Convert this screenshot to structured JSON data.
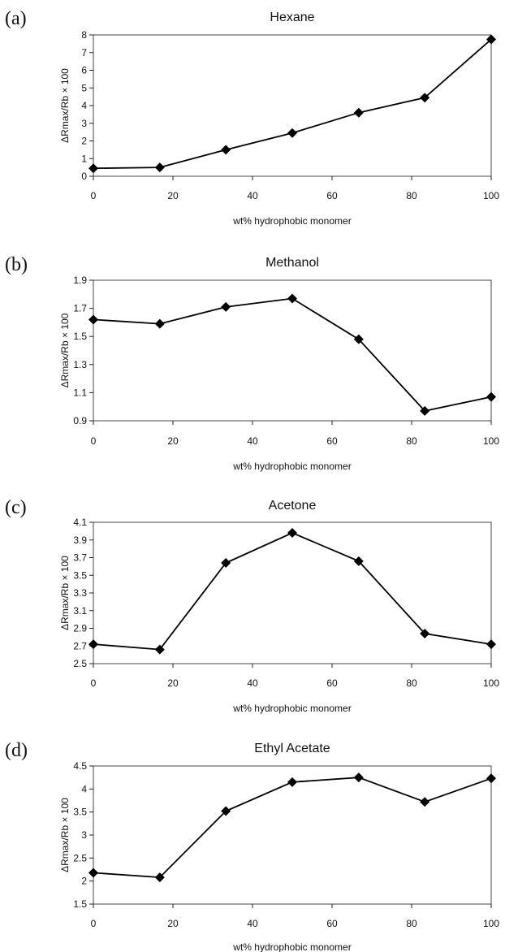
{
  "chart_data": [
    {
      "panel": "(a)",
      "type": "line",
      "title": "Hexane",
      "xlabel": "wt% hydrophobic monomer",
      "ylabel": "ΔRmax/Rb × 100",
      "x": [
        0,
        16.7,
        33.3,
        50,
        66.7,
        83.3,
        100
      ],
      "series": [
        {
          "values": [
            0.45,
            0.5,
            1.5,
            2.45,
            3.6,
            4.45,
            7.75
          ]
        }
      ],
      "xlim": [
        0,
        100
      ],
      "ylim": [
        0,
        8
      ],
      "xticks": [
        "0",
        "20",
        "40",
        "60",
        "80",
        "100"
      ],
      "yticks": [
        "0",
        "1",
        "2",
        "3",
        "4",
        "5",
        "6",
        "7",
        "8"
      ],
      "grid": false,
      "legend": "none",
      "marker": "diamond",
      "color": "#000000"
    },
    {
      "panel": "(b)",
      "type": "line",
      "title": "Methanol",
      "xlabel": "wt% hydrophobic monomer",
      "ylabel": "ΔRmax/Rb × 100",
      "x": [
        0,
        16.7,
        33.3,
        50,
        66.7,
        83.3,
        100
      ],
      "series": [
        {
          "values": [
            1.62,
            1.59,
            1.71,
            1.77,
            1.48,
            0.97,
            1.07
          ]
        }
      ],
      "xlim": [
        0,
        100
      ],
      "ylim": [
        0.9,
        1.9
      ],
      "xticks": [
        "0",
        "20",
        "40",
        "60",
        "80",
        "100"
      ],
      "yticks": [
        "0.9",
        "1.1",
        "1.3",
        "1.5",
        "1.7",
        "1.9"
      ],
      "grid": false,
      "legend": "none",
      "marker": "diamond",
      "color": "#000000"
    },
    {
      "panel": "(c)",
      "type": "line",
      "title": "Acetone",
      "xlabel": "wt% hydrophobic monomer",
      "ylabel": "ΔRmax/Rb × 100",
      "x": [
        0,
        16.7,
        33.3,
        50,
        66.7,
        83.3,
        100
      ],
      "series": [
        {
          "values": [
            2.72,
            2.66,
            3.64,
            3.98,
            3.66,
            2.84,
            2.72
          ]
        }
      ],
      "xlim": [
        0,
        100
      ],
      "ylim": [
        2.5,
        4.1
      ],
      "xticks": [
        "0",
        "20",
        "40",
        "60",
        "80",
        "100"
      ],
      "yticks": [
        "2.5",
        "2.7",
        "2.9",
        "3.1",
        "3.3",
        "3.5",
        "3.7",
        "3.9",
        "4.1"
      ],
      "grid": false,
      "legend": "none",
      "marker": "diamond",
      "color": "#000000"
    },
    {
      "panel": "(d)",
      "type": "line",
      "title": "Ethyl Acetate",
      "xlabel": "wt% hydrophobic monomer",
      "ylabel": "ΔRmax/Rb × 100",
      "x": [
        0,
        16.7,
        33.3,
        50,
        66.7,
        83.3,
        100
      ],
      "series": [
        {
          "values": [
            2.18,
            2.08,
            3.52,
            4.15,
            4.25,
            3.72,
            4.23
          ]
        }
      ],
      "xlim": [
        0,
        100
      ],
      "ylim": [
        1.5,
        4.5
      ],
      "xticks": [
        "0",
        "20",
        "40",
        "60",
        "80",
        "100"
      ],
      "yticks": [
        "1.5",
        "2",
        "2.5",
        "3",
        "3.5",
        "4",
        "4.5"
      ],
      "grid": false,
      "legend": "none",
      "marker": "diamond",
      "color": "#000000"
    }
  ]
}
